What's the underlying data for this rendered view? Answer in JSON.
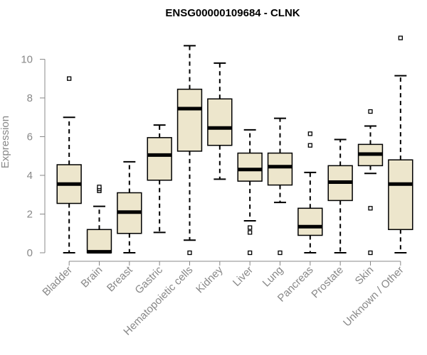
{
  "chart_data": {
    "type": "boxplot",
    "title": "ENSG00000109684 - CLNK",
    "xlabel": "",
    "ylabel": "Expression",
    "ylim": [
      0,
      11.3
    ],
    "yticks": [
      0,
      2,
      4,
      6,
      8,
      10
    ],
    "colors": {
      "box_fill": "#ede6cc",
      "stroke": "#000000",
      "axis_text": "#888888"
    },
    "categories": [
      "Bladder",
      "Brain",
      "Breast",
      "Gastric",
      "Hematopoietic cells",
      "Kidney",
      "Liver",
      "Lung",
      "Pancreas",
      "Prostate",
      "Skin",
      "Unknown / Other"
    ],
    "boxes": [
      {
        "whisker_low": 0.0,
        "q1": 2.55,
        "median": 3.55,
        "q3": 4.55,
        "whisker_high": 7.0,
        "outliers": [
          9.0
        ]
      },
      {
        "whisker_low": 0.0,
        "q1": 0.0,
        "median": 0.05,
        "q3": 1.2,
        "whisker_high": 2.4,
        "outliers": [
          3.2,
          3.3,
          3.4
        ]
      },
      {
        "whisker_low": 0.0,
        "q1": 1.0,
        "median": 2.1,
        "q3": 3.1,
        "whisker_high": 4.7,
        "outliers": []
      },
      {
        "whisker_low": 1.05,
        "q1": 3.75,
        "median": 5.05,
        "q3": 5.95,
        "whisker_high": 6.6,
        "outliers": []
      },
      {
        "whisker_low": 0.65,
        "q1": 5.25,
        "median": 7.45,
        "q3": 8.45,
        "whisker_high": 10.7,
        "outliers": [
          0.0
        ]
      },
      {
        "whisker_low": 3.8,
        "q1": 5.55,
        "median": 6.45,
        "q3": 7.95,
        "whisker_high": 9.8,
        "outliers": []
      },
      {
        "whisker_low": 1.65,
        "q1": 3.7,
        "median": 4.3,
        "q3": 5.15,
        "whisker_high": 6.35,
        "outliers": [
          1.3,
          1.05,
          0.0
        ]
      },
      {
        "whisker_low": 2.6,
        "q1": 3.5,
        "median": 4.45,
        "q3": 5.15,
        "whisker_high": 6.95,
        "outliers": [
          0.0
        ]
      },
      {
        "whisker_low": 0.0,
        "q1": 0.9,
        "median": 1.35,
        "q3": 2.3,
        "whisker_high": 4.15,
        "outliers": [
          6.15,
          5.55
        ]
      },
      {
        "whisker_low": 0.0,
        "q1": 2.7,
        "median": 3.65,
        "q3": 4.5,
        "whisker_high": 5.85,
        "outliers": []
      },
      {
        "whisker_low": 4.1,
        "q1": 4.5,
        "median": 5.1,
        "q3": 5.6,
        "whisker_high": 6.55,
        "outliers": [
          7.3,
          2.3,
          0.0
        ]
      },
      {
        "whisker_low": 0.0,
        "q1": 1.2,
        "median": 3.55,
        "q3": 4.8,
        "whisker_high": 9.15,
        "outliers": [
          11.1
        ]
      }
    ]
  }
}
